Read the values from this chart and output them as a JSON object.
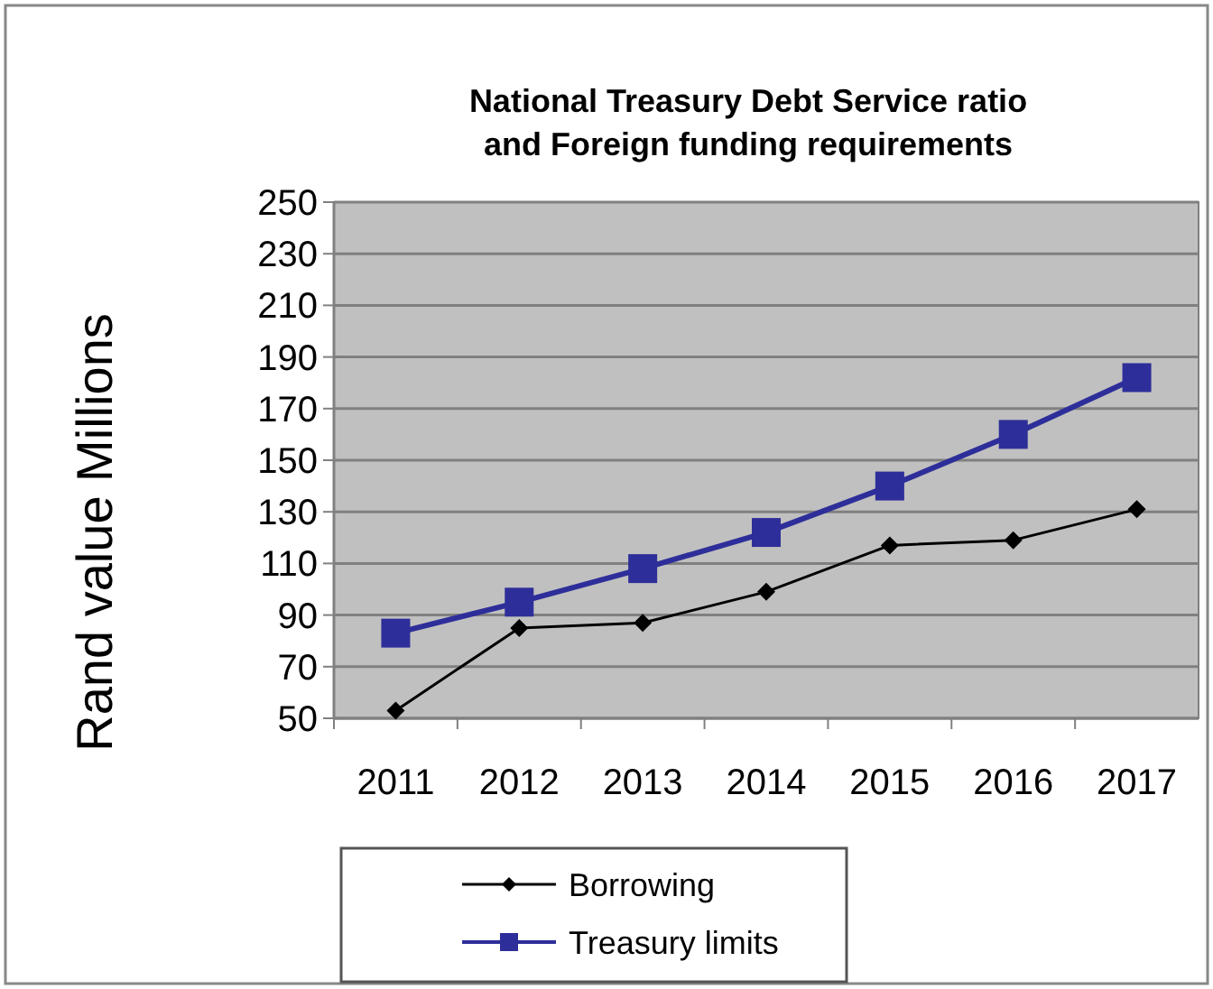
{
  "chart_data": {
    "type": "line",
    "title": "National Treasury Debt Service ratio and Foreign funding requirements",
    "ylabel": "Rand value Millions",
    "categories": [
      "2011",
      "2012",
      "2013",
      "2014",
      "2015",
      "2016",
      "2017"
    ],
    "series": [
      {
        "name": "Borrowing",
        "color": "#000000",
        "marker": "diamond",
        "values": [
          53,
          85,
          87,
          99,
          117,
          119,
          131
        ]
      },
      {
        "name": "Treasury limits",
        "color": "#2e2e9a",
        "marker": "square",
        "values": [
          83,
          95,
          108,
          122,
          140,
          160,
          182
        ]
      }
    ],
    "ylim": [
      50,
      250
    ],
    "yticks": [
      50,
      70,
      90,
      110,
      130,
      150,
      170,
      190,
      210,
      230,
      250
    ],
    "grid": "y",
    "legend": "bottom"
  }
}
